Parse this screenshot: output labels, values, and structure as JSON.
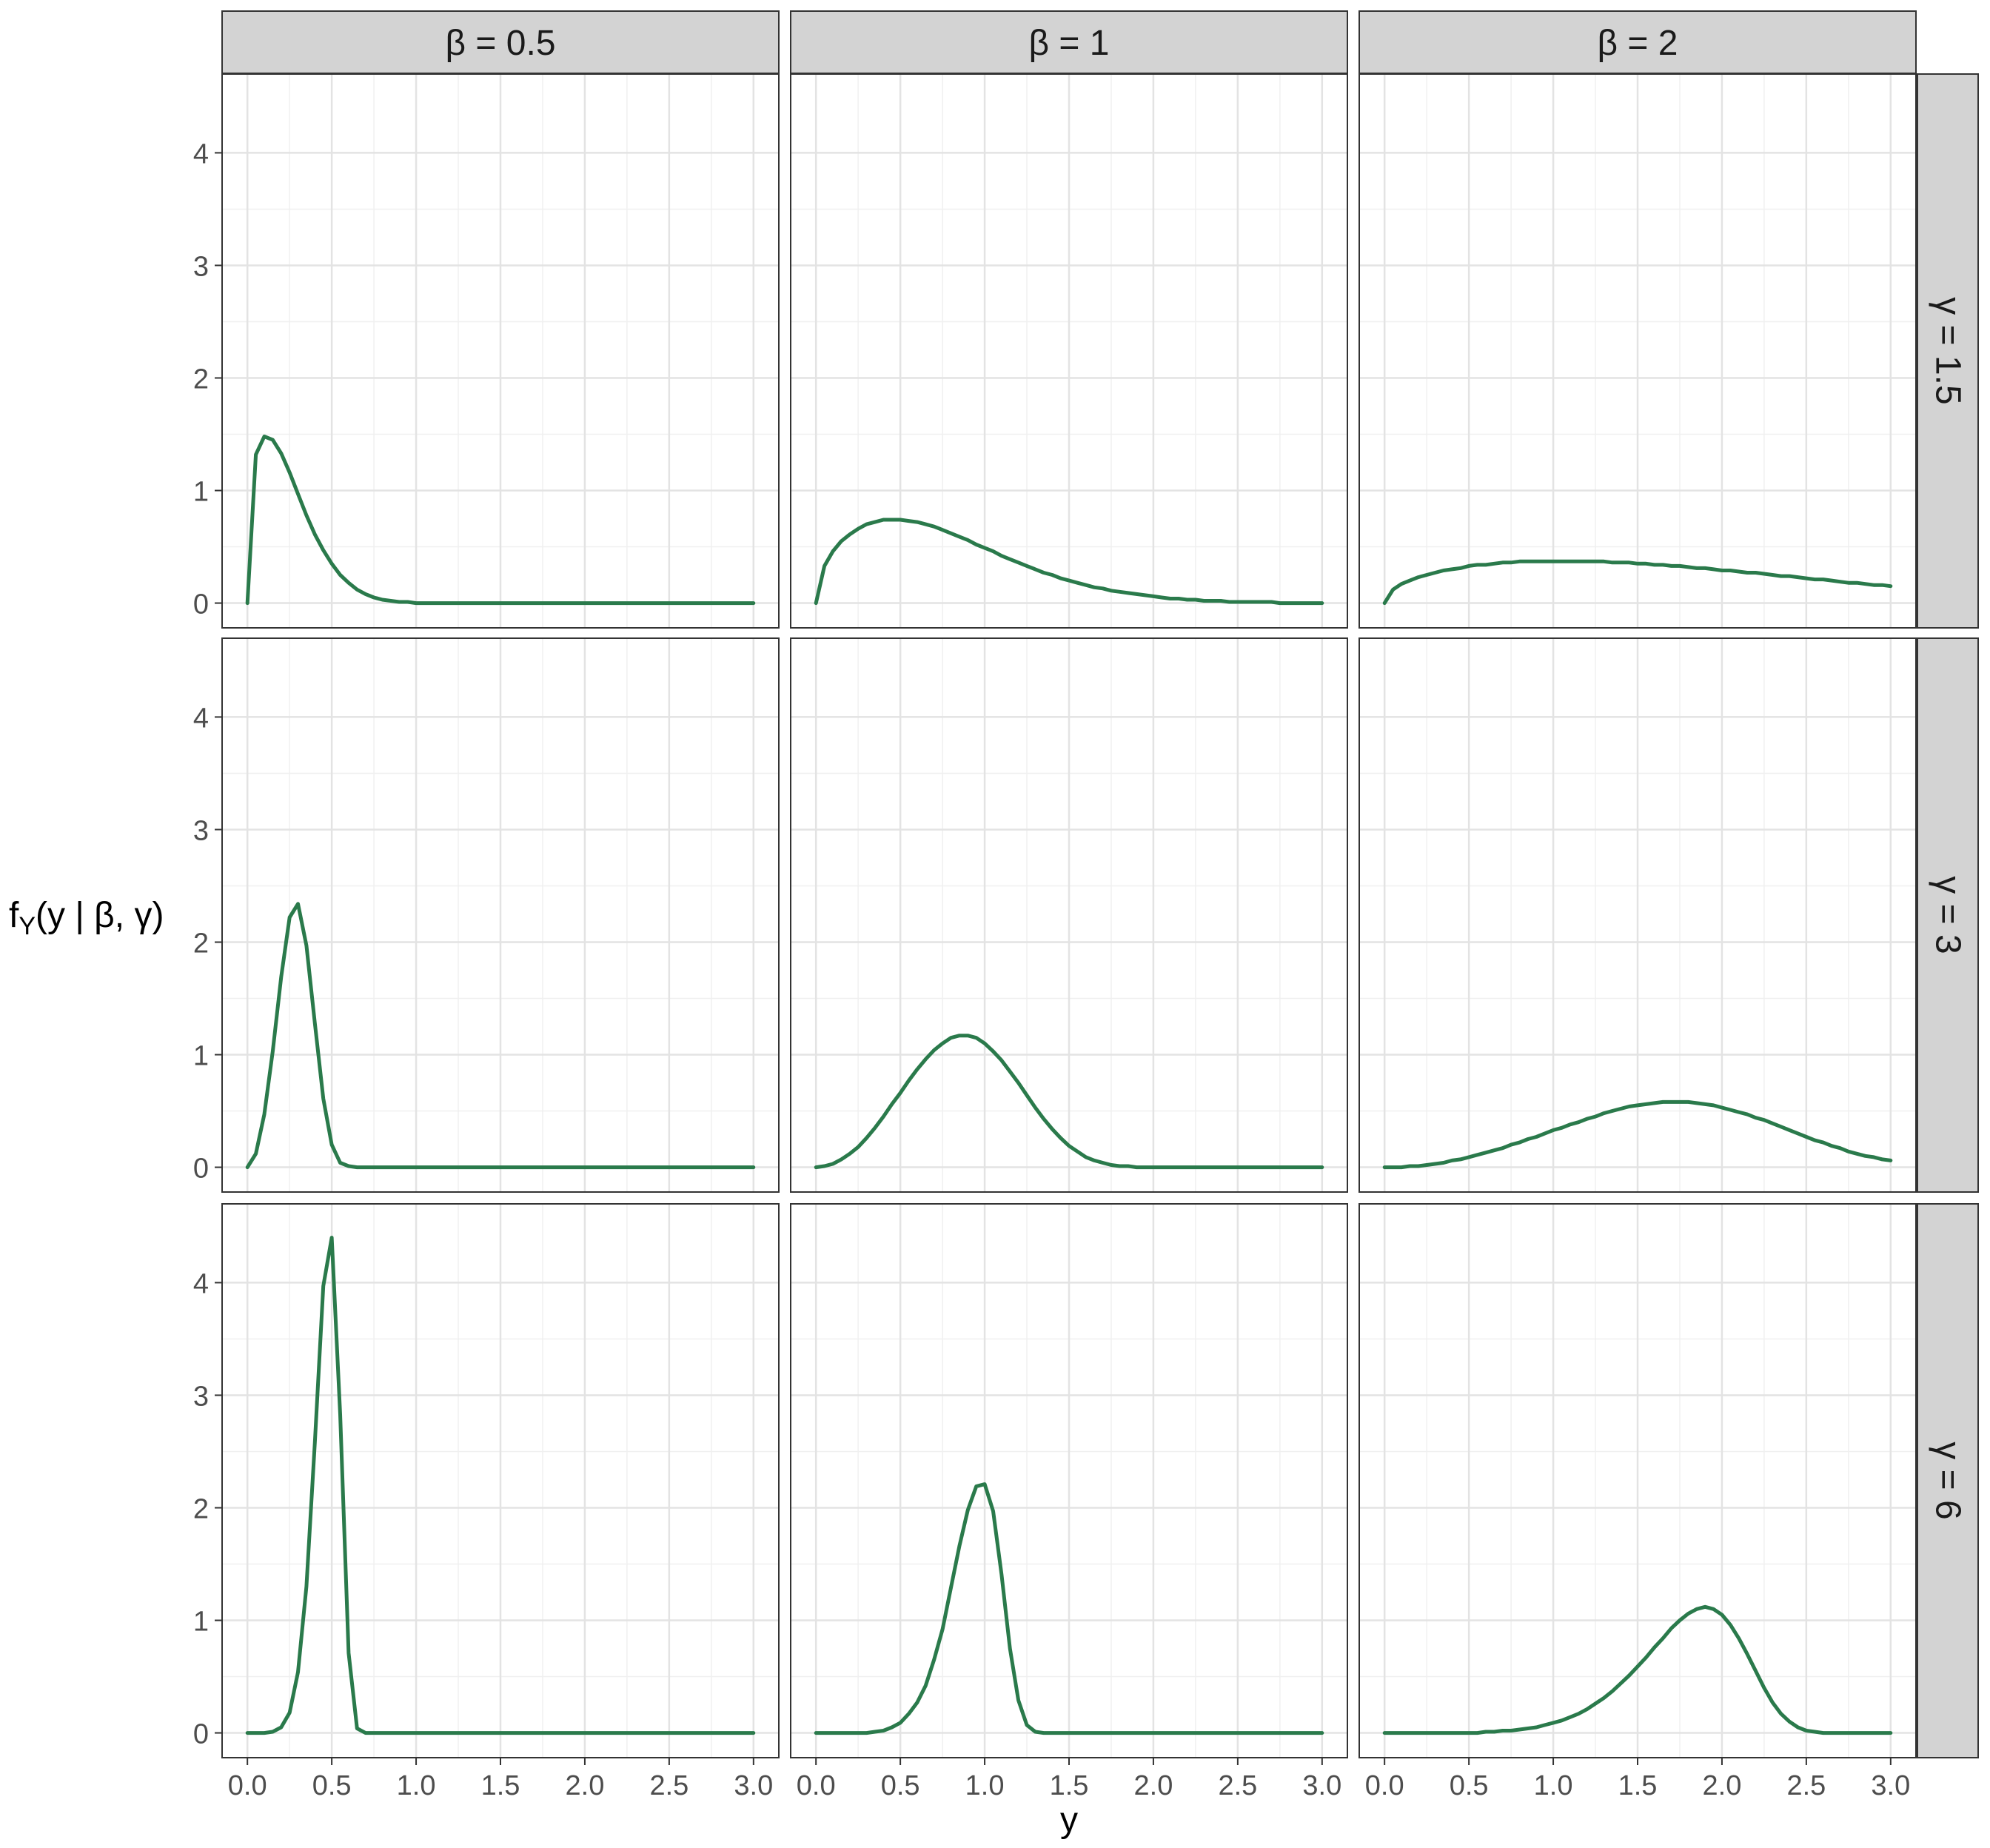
{
  "chart_data": {
    "type": "line",
    "title": "",
    "xlabel": "y",
    "ylabel": "f_Y(y | β, γ)",
    "ylabel_parts": {
      "f": "f",
      "sub": "Y",
      "rest": "(y | β, γ)"
    },
    "xlim": [
      -0.15,
      3.15
    ],
    "ylim": [
      -0.22,
      4.7
    ],
    "x_ticks": [
      0,
      0.5,
      1,
      1.5,
      2,
      2.5,
      3
    ],
    "x_tick_labels": [
      "0.0",
      "0.5",
      "1.0",
      "1.5",
      "2.0",
      "2.5",
      "3.0"
    ],
    "y_ticks": [
      0,
      1,
      2,
      3,
      4
    ],
    "y_tick_labels": [
      "0",
      "1",
      "2",
      "3",
      "4"
    ],
    "grid": true,
    "legend": "none",
    "line_color": "#2a7a4b",
    "strip_fill": "#d3d3d3",
    "facet_cols": [
      {
        "label": "β = 0.5",
        "beta": 0.5
      },
      {
        "label": "β = 1",
        "beta": 1
      },
      {
        "label": "β = 2",
        "beta": 2
      }
    ],
    "facet_rows": [
      {
        "label": "γ = 1.5",
        "gamma": 1.5
      },
      {
        "label": "γ = 3",
        "gamma": 3
      },
      {
        "label": "γ = 6",
        "gamma": 6
      }
    ],
    "x": [
      0,
      0.05,
      0.1,
      0.15,
      0.2,
      0.25,
      0.3,
      0.35,
      0.4,
      0.45,
      0.5,
      0.55,
      0.6,
      0.65,
      0.7,
      0.75,
      0.8,
      0.85,
      0.9,
      0.95,
      1,
      1.05,
      1.1,
      1.15,
      1.2,
      1.25,
      1.3,
      1.35,
      1.4,
      1.45,
      1.5,
      1.55,
      1.6,
      1.65,
      1.7,
      1.75,
      1.8,
      1.85,
      1.9,
      1.95,
      2,
      2.05,
      2.1,
      2.15,
      2.2,
      2.25,
      2.3,
      2.35,
      2.4,
      2.45,
      2.5,
      2.55,
      2.6,
      2.65,
      2.7,
      2.75,
      2.8,
      2.85,
      2.9,
      2.95,
      3
    ],
    "panels": [
      {
        "row": 0,
        "col": 0,
        "y": [
          0,
          1.32,
          1.48,
          1.45,
          1.33,
          1.16,
          0.97,
          0.78,
          0.61,
          0.47,
          0.35,
          0.25,
          0.18,
          0.12,
          0.08,
          0.05,
          0.03,
          0.02,
          0.01,
          0.01,
          0,
          0,
          0,
          0,
          0,
          0,
          0,
          0,
          0,
          0,
          0,
          0,
          0,
          0,
          0,
          0,
          0,
          0,
          0,
          0,
          0,
          0,
          0,
          0,
          0,
          0,
          0,
          0,
          0,
          0,
          0,
          0,
          0,
          0,
          0,
          0,
          0,
          0,
          0,
          0,
          0
        ]
      },
      {
        "row": 0,
        "col": 1,
        "y": [
          0,
          0.33,
          0.46,
          0.55,
          0.61,
          0.66,
          0.7,
          0.72,
          0.74,
          0.74,
          0.74,
          0.73,
          0.72,
          0.7,
          0.68,
          0.65,
          0.62,
          0.59,
          0.56,
          0.52,
          0.49,
          0.46,
          0.42,
          0.39,
          0.36,
          0.33,
          0.3,
          0.27,
          0.25,
          0.22,
          0.2,
          0.18,
          0.16,
          0.14,
          0.13,
          0.11,
          0.1,
          0.09,
          0.08,
          0.07,
          0.06,
          0.05,
          0.04,
          0.04,
          0.03,
          0.03,
          0.02,
          0.02,
          0.02,
          0.01,
          0.01,
          0.01,
          0.01,
          0.01,
          0.01,
          0,
          0,
          0,
          0,
          0,
          0
        ]
      },
      {
        "row": 0,
        "col": 2,
        "y": [
          0,
          0.12,
          0.17,
          0.2,
          0.23,
          0.25,
          0.27,
          0.29,
          0.3,
          0.31,
          0.33,
          0.34,
          0.34,
          0.35,
          0.36,
          0.36,
          0.37,
          0.37,
          0.37,
          0.37,
          0.37,
          0.37,
          0.37,
          0.37,
          0.37,
          0.37,
          0.37,
          0.36,
          0.36,
          0.36,
          0.35,
          0.35,
          0.34,
          0.34,
          0.33,
          0.33,
          0.32,
          0.31,
          0.31,
          0.3,
          0.29,
          0.29,
          0.28,
          0.27,
          0.27,
          0.26,
          0.25,
          0.24,
          0.24,
          0.23,
          0.22,
          0.21,
          0.21,
          0.2,
          0.19,
          0.18,
          0.18,
          0.17,
          0.16,
          0.16,
          0.15
        ]
      },
      {
        "row": 1,
        "col": 0,
        "y": [
          0,
          0.12,
          0.47,
          1.03,
          1.69,
          2.22,
          2.34,
          1.97,
          1.28,
          0.61,
          0.2,
          0.04,
          0.01,
          0,
          0,
          0,
          0,
          0,
          0,
          0,
          0,
          0,
          0,
          0,
          0,
          0,
          0,
          0,
          0,
          0,
          0,
          0,
          0,
          0,
          0,
          0,
          0,
          0,
          0,
          0,
          0,
          0,
          0,
          0,
          0,
          0,
          0,
          0,
          0,
          0,
          0,
          0,
          0,
          0,
          0,
          0,
          0,
          0,
          0,
          0,
          0
        ]
      },
      {
        "row": 1,
        "col": 1,
        "y": [
          0,
          0.01,
          0.03,
          0.07,
          0.12,
          0.18,
          0.26,
          0.35,
          0.45,
          0.56,
          0.66,
          0.77,
          0.87,
          0.96,
          1.04,
          1.1,
          1.15,
          1.17,
          1.17,
          1.15,
          1.1,
          1.03,
          0.95,
          0.85,
          0.75,
          0.64,
          0.53,
          0.43,
          0.34,
          0.26,
          0.19,
          0.14,
          0.09,
          0.06,
          0.04,
          0.02,
          0.01,
          0.01,
          0,
          0,
          0,
          0,
          0,
          0,
          0,
          0,
          0,
          0,
          0,
          0,
          0,
          0,
          0,
          0,
          0,
          0,
          0,
          0,
          0,
          0,
          0
        ]
      },
      {
        "row": 1,
        "col": 2,
        "y": [
          0,
          0.0,
          0.0,
          0.01,
          0.01,
          0.02,
          0.03,
          0.04,
          0.06,
          0.07,
          0.09,
          0.11,
          0.13,
          0.15,
          0.17,
          0.2,
          0.22,
          0.25,
          0.27,
          0.3,
          0.33,
          0.35,
          0.38,
          0.4,
          0.43,
          0.45,
          0.48,
          0.5,
          0.52,
          0.54,
          0.55,
          0.56,
          0.57,
          0.58,
          0.58,
          0.58,
          0.58,
          0.57,
          0.56,
          0.55,
          0.53,
          0.51,
          0.49,
          0.47,
          0.44,
          0.42,
          0.39,
          0.36,
          0.33,
          0.3,
          0.27,
          0.24,
          0.22,
          0.19,
          0.17,
          0.14,
          0.12,
          0.1,
          0.09,
          0.07,
          0.06
        ]
      },
      {
        "row": 2,
        "col": 0,
        "y": [
          0,
          0.0,
          0.0,
          0.01,
          0.05,
          0.18,
          0.54,
          1.3,
          2.58,
          3.97,
          4.4,
          2.83,
          0.71,
          0.04,
          0,
          0,
          0,
          0,
          0,
          0,
          0,
          0,
          0,
          0,
          0,
          0,
          0,
          0,
          0,
          0,
          0,
          0,
          0,
          0,
          0,
          0,
          0,
          0,
          0,
          0,
          0,
          0,
          0,
          0,
          0,
          0,
          0,
          0,
          0,
          0,
          0,
          0,
          0,
          0,
          0,
          0,
          0,
          0,
          0,
          0,
          0
        ]
      },
      {
        "row": 2,
        "col": 1,
        "y": [
          0,
          0,
          0,
          0,
          0,
          0,
          0,
          0.01,
          0.02,
          0.05,
          0.09,
          0.17,
          0.27,
          0.42,
          0.65,
          0.92,
          1.29,
          1.66,
          1.98,
          2.19,
          2.21,
          1.97,
          1.41,
          0.75,
          0.29,
          0.07,
          0.01,
          0,
          0,
          0,
          0,
          0,
          0,
          0,
          0,
          0,
          0,
          0,
          0,
          0,
          0,
          0,
          0,
          0,
          0,
          0,
          0,
          0,
          0,
          0,
          0,
          0,
          0,
          0,
          0,
          0,
          0,
          0,
          0,
          0,
          0
        ]
      },
      {
        "row": 2,
        "col": 2,
        "y": [
          0,
          0,
          0,
          0,
          0,
          0,
          0,
          0,
          0,
          0,
          0,
          0,
          0.01,
          0.01,
          0.02,
          0.02,
          0.03,
          0.04,
          0.05,
          0.07,
          0.09,
          0.11,
          0.14,
          0.17,
          0.21,
          0.26,
          0.31,
          0.37,
          0.44,
          0.51,
          0.59,
          0.67,
          0.76,
          0.84,
          0.93,
          1.0,
          1.06,
          1.1,
          1.12,
          1.1,
          1.05,
          0.96,
          0.84,
          0.7,
          0.55,
          0.4,
          0.27,
          0.17,
          0.1,
          0.05,
          0.02,
          0.01,
          0,
          0,
          0,
          0,
          0,
          0,
          0,
          0,
          0
        ]
      }
    ]
  }
}
